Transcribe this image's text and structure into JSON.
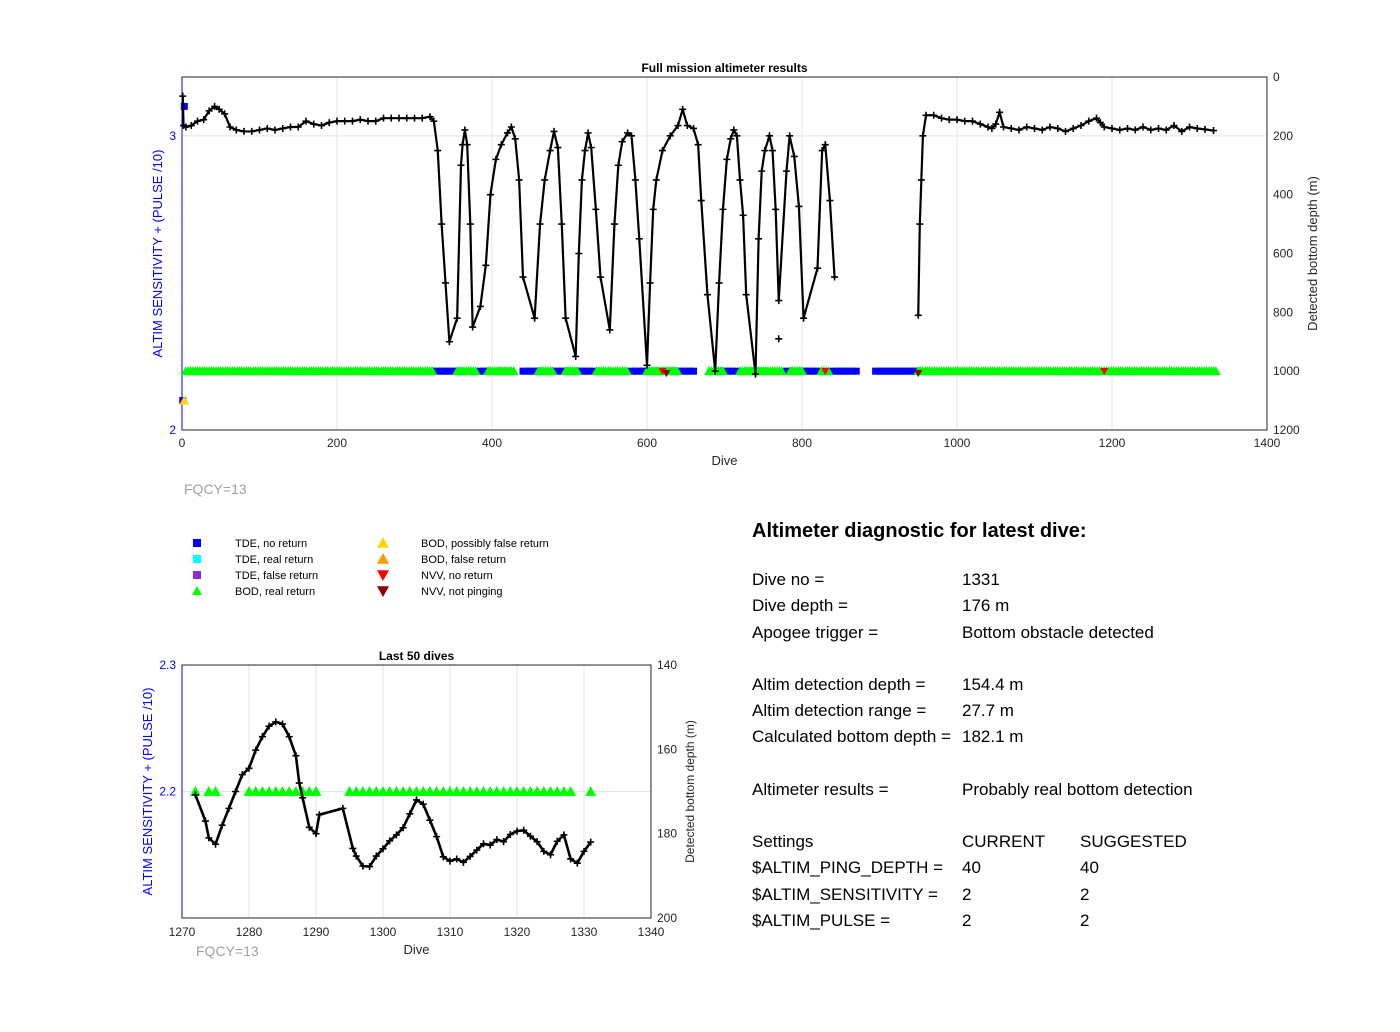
{
  "chart_data": [
    {
      "type": "scatter",
      "title": "Full mission altimeter results",
      "xlabel": "Dive",
      "ylabel_left": "ALTIM SENSITIVITY + (PULSE /10)",
      "ylabel_right": "Detected bottom depth (m)",
      "xlim": [
        0,
        1400
      ],
      "ylim_left": [
        2,
        3.2
      ],
      "ylim_right_reversed": [
        0,
        1200
      ],
      "xticks": [
        0,
        200,
        400,
        600,
        800,
        1000,
        1200,
        1400
      ],
      "yticks_left": [
        2,
        3
      ],
      "yticks_right": [
        0,
        200,
        400,
        600,
        800,
        1000,
        1200
      ],
      "grid": true,
      "annotation": "FQCY=13",
      "depth_series": [
        [
          1,
          65
        ],
        [
          2,
          165
        ],
        [
          5,
          170
        ],
        [
          12,
          165
        ],
        [
          20,
          150
        ],
        [
          28,
          145
        ],
        [
          35,
          115
        ],
        [
          42,
          100
        ],
        [
          48,
          110
        ],
        [
          55,
          125
        ],
        [
          62,
          170
        ],
        [
          70,
          180
        ],
        [
          80,
          185
        ],
        [
          90,
          185
        ],
        [
          100,
          180
        ],
        [
          110,
          175
        ],
        [
          120,
          180
        ],
        [
          130,
          175
        ],
        [
          140,
          170
        ],
        [
          150,
          170
        ],
        [
          160,
          150
        ],
        [
          170,
          160
        ],
        [
          180,
          165
        ],
        [
          190,
          155
        ],
        [
          200,
          150
        ],
        [
          210,
          150
        ],
        [
          220,
          150
        ],
        [
          230,
          145
        ],
        [
          240,
          150
        ],
        [
          250,
          150
        ],
        [
          260,
          140
        ],
        [
          270,
          140
        ],
        [
          280,
          140
        ],
        [
          290,
          140
        ],
        [
          300,
          140
        ],
        [
          310,
          140
        ],
        [
          320,
          135
        ],
        [
          325,
          150
        ],
        [
          330,
          250
        ],
        [
          335,
          500
        ],
        [
          340,
          700
        ],
        [
          345,
          900
        ],
        [
          355,
          820
        ],
        [
          360,
          300
        ],
        [
          362,
          230
        ],
        [
          365,
          180
        ],
        [
          368,
          230
        ],
        [
          372,
          500
        ],
        [
          375,
          850
        ],
        [
          385,
          780
        ],
        [
          392,
          640
        ],
        [
          398,
          400
        ],
        [
          405,
          280
        ],
        [
          412,
          230
        ],
        [
          420,
          190
        ],
        [
          425,
          170
        ],
        [
          430,
          210
        ],
        [
          435,
          350
        ],
        [
          440,
          680
        ],
        [
          455,
          820
        ],
        [
          462,
          500
        ],
        [
          468,
          350
        ],
        [
          475,
          250
        ],
        [
          480,
          185
        ],
        [
          485,
          240
        ],
        [
          490,
          500
        ],
        [
          495,
          820
        ],
        [
          508,
          950
        ],
        [
          512,
          600
        ],
        [
          516,
          350
        ],
        [
          520,
          250
        ],
        [
          524,
          190
        ],
        [
          528,
          240
        ],
        [
          534,
          450
        ],
        [
          540,
          680
        ],
        [
          552,
          860
        ],
        [
          558,
          500
        ],
        [
          563,
          300
        ],
        [
          568,
          220
        ],
        [
          575,
          190
        ],
        [
          580,
          200
        ],
        [
          585,
          350
        ],
        [
          590,
          550
        ],
        [
          600,
          980
        ],
        [
          604,
          700
        ],
        [
          608,
          450
        ],
        [
          612,
          350
        ],
        [
          620,
          250
        ],
        [
          630,
          200
        ],
        [
          640,
          165
        ],
        [
          646,
          110
        ],
        [
          652,
          165
        ],
        [
          660,
          175
        ],
        [
          666,
          230
        ],
        [
          670,
          420
        ],
        [
          678,
          740
        ],
        [
          688,
          1000
        ],
        [
          693,
          700
        ],
        [
          698,
          450
        ],
        [
          703,
          280
        ],
        [
          708,
          210
        ],
        [
          712,
          180
        ],
        [
          716,
          200
        ],
        [
          720,
          350
        ],
        [
          724,
          470
        ],
        [
          728,
          740
        ],
        [
          740,
          1010
        ],
        [
          744,
          550
        ],
        [
          748,
          320
        ],
        [
          752,
          250
        ],
        [
          758,
          200
        ],
        [
          762,
          250
        ],
        [
          766,
          450
        ],
        [
          770,
          760
        ],
        [
          780,
          320
        ],
        [
          784,
          200
        ],
        [
          790,
          270
        ],
        [
          796,
          440
        ],
        [
          802,
          820
        ],
        [
          820,
          650
        ],
        [
          826,
          250
        ],
        [
          830,
          230
        ],
        [
          836,
          420
        ],
        [
          842,
          680
        ],
        [
          950,
          810
        ],
        [
          952,
          500
        ],
        [
          954,
          350
        ],
        [
          956,
          200
        ],
        [
          960,
          130
        ],
        [
          970,
          130
        ],
        [
          980,
          140
        ],
        [
          990,
          145
        ],
        [
          1000,
          145
        ],
        [
          1010,
          150
        ],
        [
          1020,
          150
        ],
        [
          1030,
          160
        ],
        [
          1040,
          170
        ],
        [
          1045,
          175
        ],
        [
          1050,
          160
        ],
        [
          1055,
          120
        ],
        [
          1060,
          170
        ],
        [
          1070,
          175
        ],
        [
          1080,
          180
        ],
        [
          1090,
          170
        ],
        [
          1100,
          175
        ],
        [
          1110,
          180
        ],
        [
          1120,
          170
        ],
        [
          1130,
          175
        ],
        [
          1140,
          185
        ],
        [
          1150,
          175
        ],
        [
          1160,
          165
        ],
        [
          1170,
          150
        ],
        [
          1180,
          140
        ],
        [
          1185,
          155
        ],
        [
          1190,
          170
        ],
        [
          1200,
          175
        ],
        [
          1210,
          180
        ],
        [
          1220,
          175
        ],
        [
          1230,
          180
        ],
        [
          1240,
          170
        ],
        [
          1250,
          180
        ],
        [
          1260,
          175
        ],
        [
          1270,
          180
        ],
        [
          1280,
          165
        ],
        [
          1290,
          185
        ],
        [
          1300,
          170
        ],
        [
          1310,
          175
        ],
        [
          1320,
          178
        ],
        [
          1331,
          182
        ]
      ],
      "markers": {
        "tde_no_return_y": 2.2,
        "bod_real_return_y": 2.2,
        "bod_possibly_false_return": [
          [
            3,
            2.1
          ]
        ],
        "tde_no_return_early": [
          [
            3,
            3.1
          ],
          [
            1,
            2.1
          ]
        ],
        "bod_real_ranges": [
          [
            5,
            325
          ],
          [
            355,
            380
          ],
          [
            395,
            430
          ],
          [
            460,
            480
          ],
          [
            495,
            510
          ],
          [
            535,
            575
          ],
          [
            600,
            640
          ],
          [
            680,
            700
          ],
          [
            720,
            775
          ],
          [
            785,
            800
          ],
          [
            825,
            835
          ],
          [
            950,
            1335
          ]
        ],
        "tde_ranges": [
          [
            325,
            345
          ],
          [
            350,
            360
          ],
          [
            385,
            395
          ],
          [
            410,
            420
          ],
          [
            440,
            460
          ],
          [
            480,
            500
          ],
          [
            510,
            530
          ],
          [
            580,
            620
          ],
          [
            620,
            660
          ],
          [
            690,
            715
          ],
          [
            730,
            750
          ],
          [
            780,
            790
          ],
          [
            800,
            820
          ],
          [
            840,
            870
          ],
          [
            895,
            950
          ]
        ],
        "nvv_no_return": [
          620,
          830,
          1190
        ],
        "nvv_not_pinging": [
          625,
          950
        ]
      }
    },
    {
      "type": "scatter",
      "title": "Last 50 dives",
      "xlabel": "Dive",
      "ylabel_left": "ALTIM SENSITIVITY + (PULSE /10)",
      "ylabel_right": "Detected bottom depth (m)",
      "xlim": [
        1270,
        1340
      ],
      "ylim_left": [
        2.1,
        2.3
      ],
      "ylim_right_reversed": [
        140,
        200
      ],
      "xticks": [
        1270,
        1280,
        1290,
        1300,
        1310,
        1320,
        1330,
        1340
      ],
      "yticks_left": [
        2.2,
        2.3
      ],
      "yticks_right": [
        140,
        160,
        180,
        200
      ],
      "grid": true,
      "annotation": "FQCY=13",
      "depth_series": [
        [
          1272,
          170.8
        ],
        [
          1273.5,
          177
        ],
        [
          1274,
          181
        ],
        [
          1275,
          182.5
        ],
        [
          1276,
          178
        ],
        [
          1277,
          174
        ],
        [
          1278,
          170
        ],
        [
          1279,
          166
        ],
        [
          1280,
          164.5
        ],
        [
          1281,
          160.2
        ],
        [
          1282,
          157
        ],
        [
          1283,
          154.5
        ],
        [
          1284,
          153.5
        ],
        [
          1285,
          154
        ],
        [
          1286,
          157
        ],
        [
          1287,
          161.5
        ],
        [
          1287.5,
          168
        ],
        [
          1288,
          171.5
        ],
        [
          1289,
          178.5
        ],
        [
          1290,
          180
        ],
        [
          1290.5,
          175.5
        ],
        [
          1294,
          174
        ],
        [
          1295.5,
          183.5
        ],
        [
          1296,
          185.3
        ],
        [
          1297,
          187.7
        ],
        [
          1298,
          187.8
        ],
        [
          1299,
          185.3
        ],
        [
          1300,
          183.6
        ],
        [
          1301,
          181.7
        ],
        [
          1302,
          180.3
        ],
        [
          1303,
          178.6
        ],
        [
          1304,
          175.3
        ],
        [
          1305,
          172
        ],
        [
          1306,
          173
        ],
        [
          1307,
          176.8
        ],
        [
          1308,
          180.7
        ],
        [
          1309,
          185.5
        ],
        [
          1310,
          186.5
        ],
        [
          1311,
          186
        ],
        [
          1312,
          186.8
        ],
        [
          1313,
          185.4
        ],
        [
          1314,
          183.9
        ],
        [
          1315,
          182.4
        ],
        [
          1316,
          182.7
        ],
        [
          1317,
          181.4
        ],
        [
          1318,
          181.9
        ],
        [
          1319,
          180.2
        ],
        [
          1320,
          179.4
        ],
        [
          1321,
          179.2
        ],
        [
          1322,
          180.6
        ],
        [
          1323,
          181.9
        ],
        [
          1324,
          184.2
        ],
        [
          1325,
          185
        ],
        [
          1326,
          181.8
        ],
        [
          1327,
          180.3
        ],
        [
          1328,
          186
        ],
        [
          1329,
          187
        ],
        [
          1330,
          184.2
        ],
        [
          1331,
          182
        ]
      ],
      "bod_real_return_dives": [
        1272,
        1274,
        1275,
        1280,
        1281,
        1282,
        1283,
        1284,
        1285,
        1286,
        1287,
        1288,
        1289,
        1290,
        1295,
        1296,
        1297,
        1298,
        1299,
        1300,
        1301,
        1302,
        1303,
        1304,
        1305,
        1306,
        1307,
        1308,
        1309,
        1310,
        1311,
        1312,
        1313,
        1314,
        1315,
        1316,
        1317,
        1318,
        1319,
        1320,
        1321,
        1322,
        1323,
        1324,
        1325,
        1326,
        1327,
        1328,
        1331
      ],
      "bod_real_return_y": 2.2
    }
  ],
  "legend": {
    "items_left": [
      {
        "label": "TDE, no return",
        "color": "#0000ff",
        "shape": "square"
      },
      {
        "label": "TDE, real return",
        "color": "#00ffff",
        "shape": "square"
      },
      {
        "label": "TDE, false return",
        "color": "#8b2bd6",
        "shape": "square"
      },
      {
        "label": "BOD, real return",
        "color": "#00ff00",
        "shape": "triangle-up"
      }
    ],
    "items_right": [
      {
        "label": "BOD, possibly false return",
        "color": "#ffd700",
        "shape": "triangle-up"
      },
      {
        "label": "BOD, false return",
        "color": "#ff9900",
        "shape": "triangle-up"
      },
      {
        "label": "NVV, no return",
        "color": "#ff0000",
        "shape": "triangle-down"
      },
      {
        "label": "NVV, not pinging",
        "color": "#8b0000",
        "shape": "triangle-down"
      }
    ]
  },
  "diagnostic": {
    "title": "Altimeter diagnostic for latest dive:",
    "dive_no_label": "Dive no =",
    "dive_no": "1331",
    "dive_depth_label": "Dive depth =",
    "dive_depth": "176 m",
    "apogee_label": "Apogee trigger =",
    "apogee": "Bottom obstacle detected",
    "altim_depth_label": "Altim detection depth =",
    "altim_depth": "154.4 m",
    "altim_range_label": "Altim detection range =",
    "altim_range": "27.7 m",
    "calc_bottom_label": "Calculated bottom depth =",
    "calc_bottom": "182.1 m",
    "results_label": "Altimeter results =",
    "results": "Probably real bottom detection",
    "settings_label": "Settings",
    "current_label": "CURRENT",
    "suggested_label": "SUGGESTED",
    "ping_depth_label": "$ALTIM_PING_DEPTH =",
    "ping_depth_current": "40",
    "ping_depth_suggested": "40",
    "sensitivity_label": "$ALTIM_SENSITIVITY =",
    "sensitivity_current": "2",
    "sensitivity_suggested": "2",
    "pulse_label": "$ALTIM_PULSE =",
    "pulse_current": "2",
    "pulse_suggested": "2"
  }
}
